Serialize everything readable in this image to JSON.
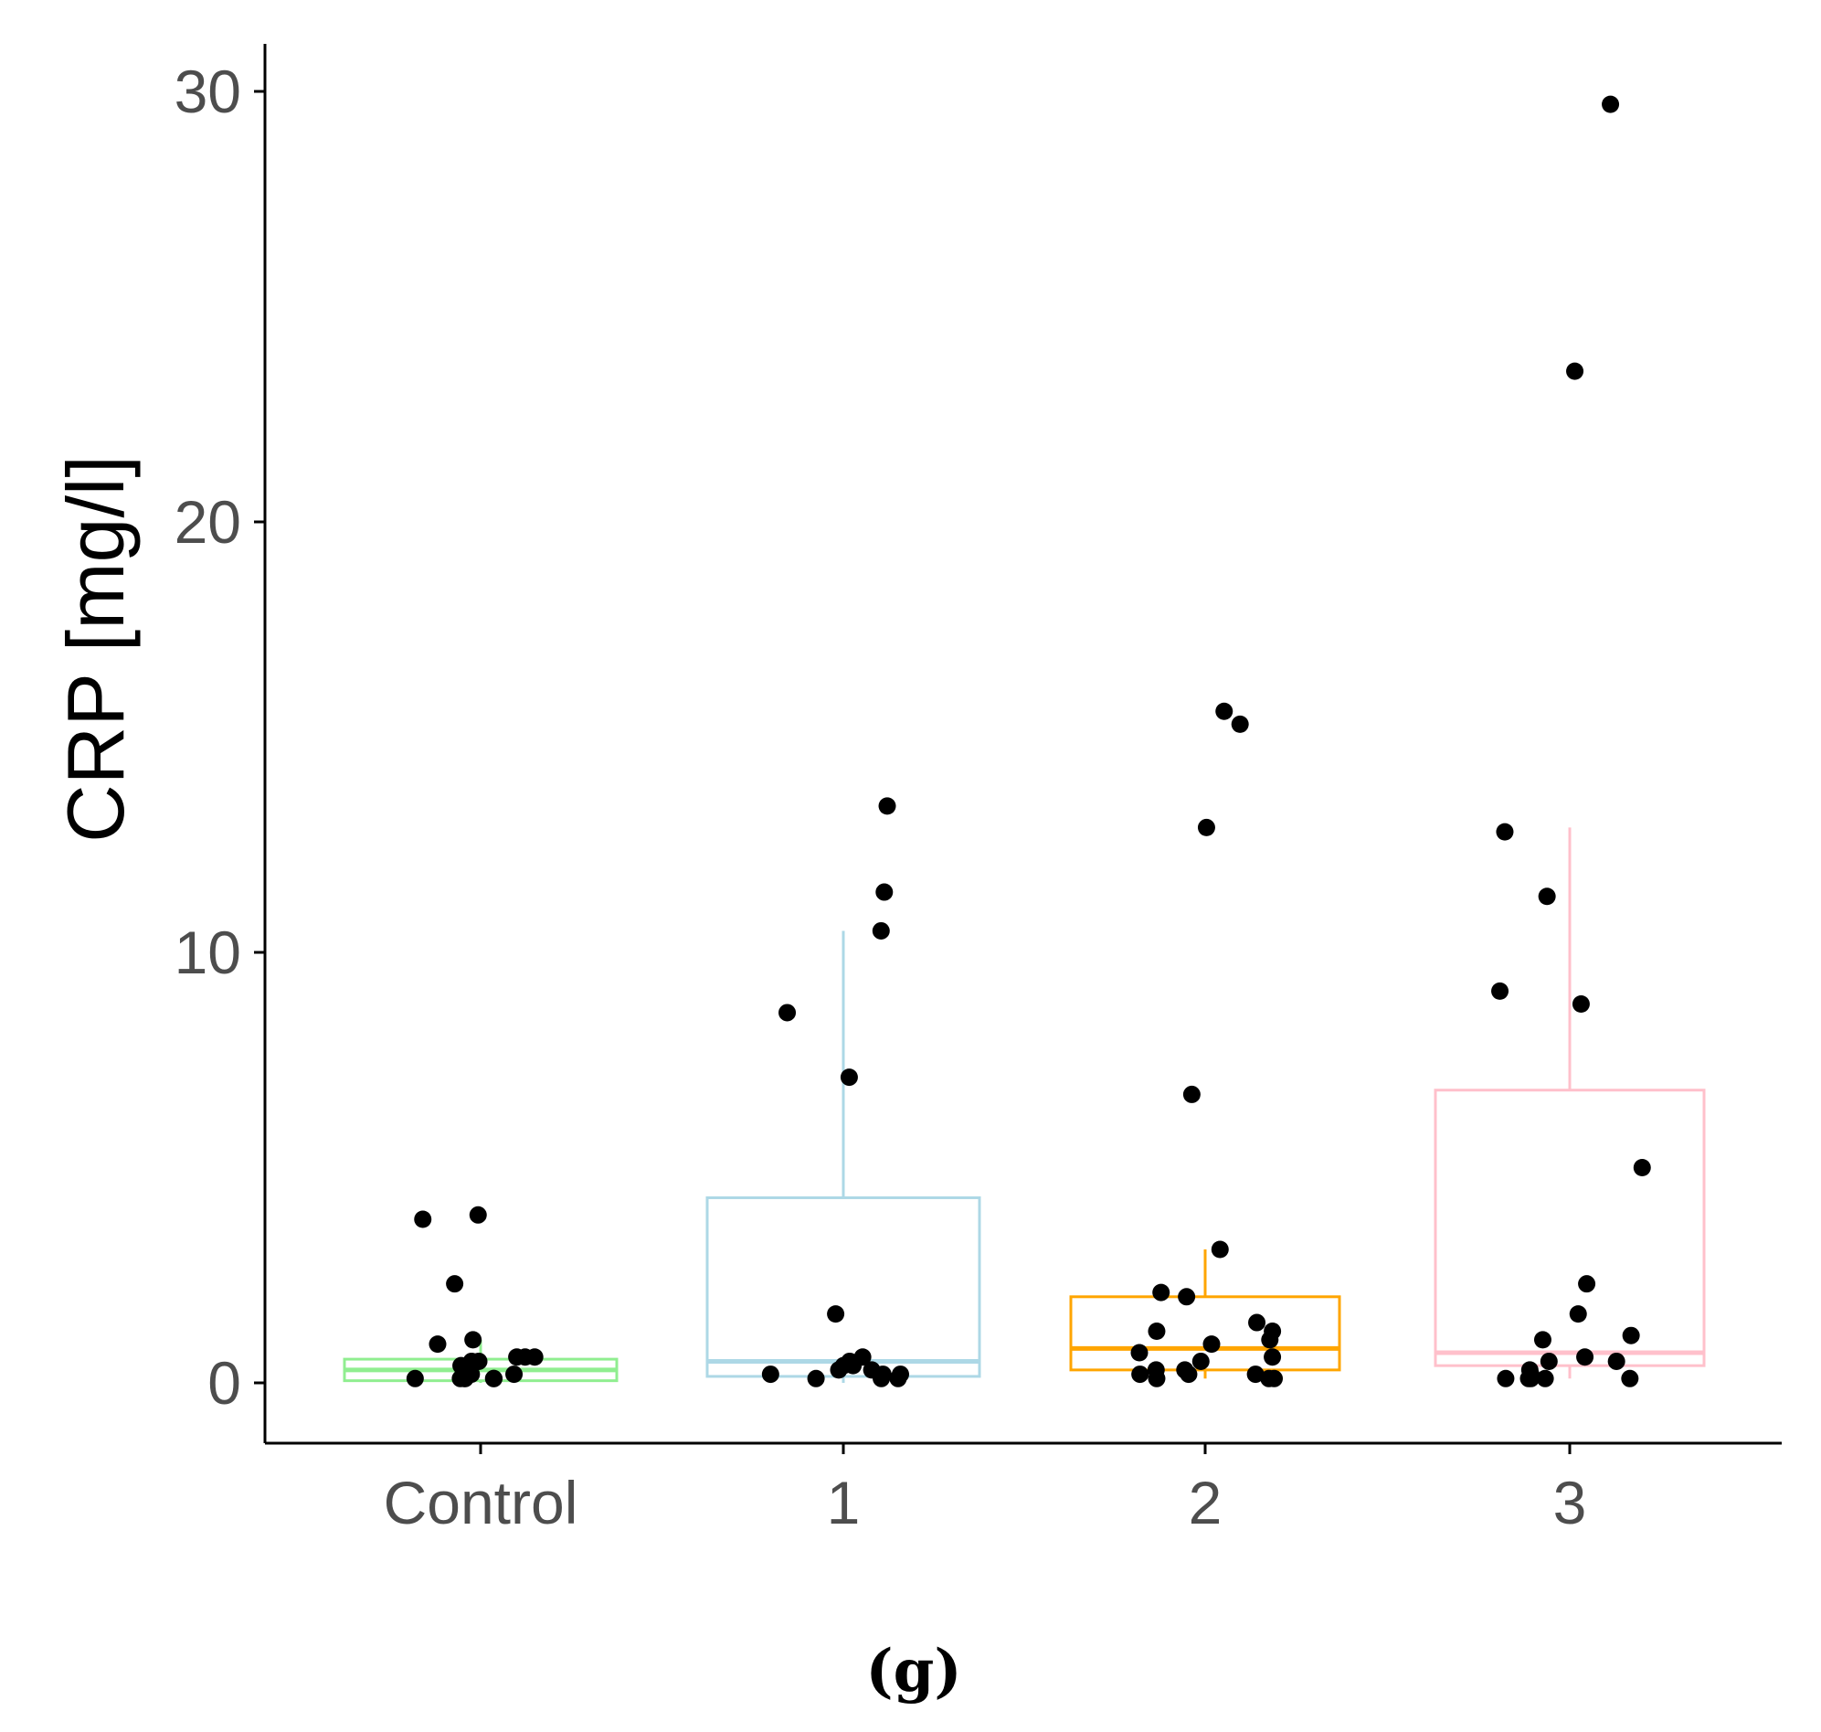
{
  "chart_data": {
    "type": "boxplot",
    "title": "",
    "xlabel": "",
    "ylabel": "CRP [mg/l]",
    "ylim": [
      -1.5,
      31
    ],
    "yticks": [
      0,
      10,
      20,
      30
    ],
    "caption": "(g)",
    "groups": [
      {
        "name": "Control",
        "color": "#90EE90",
        "median": 0.3,
        "q1": 0.05,
        "q3": 0.55,
        "whisker_low": 0.0,
        "whisker_high": 1.0,
        "points": [
          3.8,
          3.9,
          2.3,
          1.0,
          0.9,
          0.6,
          0.6,
          0.6,
          0.5,
          0.5,
          0.4,
          0.3,
          0.2,
          0.2,
          0.1,
          0.1,
          0.1,
          0.1,
          0.1,
          0.1
        ]
      },
      {
        "name": "1",
        "color": "#ADD8E6",
        "median": 0.5,
        "q1": 0.15,
        "q3": 4.3,
        "whisker_low": 0.0,
        "whisker_high": 10.5,
        "points": [
          13.4,
          11.4,
          10.5,
          8.6,
          7.1,
          1.6,
          0.6,
          0.5,
          0.4,
          0.4,
          0.3,
          0.3,
          0.2,
          0.2,
          0.2,
          0.1,
          0.1,
          0.1
        ]
      },
      {
        "name": "2",
        "color": "#FFA500",
        "median": 0.8,
        "q1": 0.3,
        "q3": 2.0,
        "whisker_low": 0.1,
        "whisker_high": 3.1,
        "points": [
          15.6,
          15.3,
          12.9,
          6.7,
          3.1,
          2.1,
          2.0,
          1.4,
          1.2,
          1.2,
          1.0,
          0.9,
          0.7,
          0.6,
          0.5,
          0.3,
          0.3,
          0.2,
          0.2,
          0.2,
          0.1,
          0.1,
          0.1
        ]
      },
      {
        "name": "3",
        "color": "#FFC0CB",
        "median": 0.7,
        "q1": 0.4,
        "q3": 6.8,
        "whisker_low": 0.1,
        "whisker_high": 12.9,
        "points": [
          29.7,
          23.5,
          12.8,
          11.3,
          9.1,
          8.8,
          5.0,
          2.3,
          1.6,
          1.1,
          1.0,
          0.6,
          0.5,
          0.5,
          0.3,
          0.2,
          0.1,
          0.1,
          0.1,
          0.1,
          0.1
        ]
      }
    ]
  }
}
